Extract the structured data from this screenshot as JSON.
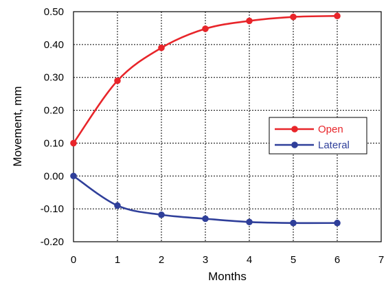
{
  "chart_data": {
    "type": "line",
    "title": "",
    "xlabel": "Months",
    "ylabel": "Movement, mm",
    "xlim": [
      0,
      7
    ],
    "ylim": [
      -0.2,
      0.5
    ],
    "x_ticks": [
      "0",
      "1",
      "2",
      "3",
      "4",
      "5",
      "6",
      "7"
    ],
    "y_ticks": [
      "-0.20",
      "-0.10",
      "0.00",
      "0.10",
      "0.20",
      "0.30",
      "0.40",
      "0.50"
    ],
    "grid": true,
    "legend_position": "center-right",
    "x": [
      0,
      1,
      2,
      3,
      4,
      5,
      6
    ],
    "series": [
      {
        "name": "Open",
        "color": "#e8252a",
        "values": [
          0.1,
          0.29,
          0.39,
          0.448,
          0.472,
          0.484,
          0.487
        ]
      },
      {
        "name": "Lateral",
        "color": "#2f3f9a",
        "values": [
          0.0,
          -0.09,
          -0.118,
          -0.13,
          -0.14,
          -0.143,
          -0.143
        ]
      }
    ]
  }
}
